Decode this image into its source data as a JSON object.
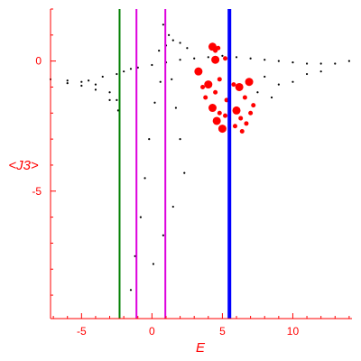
{
  "colors": {
    "axis": "#ff0000",
    "points": "#000000",
    "highlight": "#ff0000",
    "line_green": "#008000",
    "line_magenta": "#dd00dd",
    "line_blue": "#0000ff"
  },
  "chart_data": {
    "type": "scatter",
    "title": "",
    "xlabel": "E",
    "ylabel": "<J3>",
    "xlim": [
      -7.2,
      14.2
    ],
    "ylim": [
      -9.9,
      2.0
    ],
    "grid": false,
    "x_ticks": [
      -5,
      0,
      5,
      10
    ],
    "y_ticks": [
      0,
      -5
    ],
    "vertical_lines": [
      {
        "x": -2.3,
        "color": "green"
      },
      {
        "x": -1.1,
        "color": "magenta"
      },
      {
        "x": 0.95,
        "color": "magenta"
      },
      {
        "x": 5.5,
        "color": "blue"
      }
    ],
    "black_points_approx": [
      [
        -7.2,
        -0.7
      ],
      [
        -6.0,
        -0.75
      ],
      [
        -5.0,
        -0.8
      ],
      [
        -4.0,
        -0.9
      ],
      [
        -3.0,
        -1.2
      ],
      [
        -2.5,
        -1.5
      ],
      [
        -6.0,
        -0.85
      ],
      [
        -5.0,
        -0.95
      ],
      [
        -4.0,
        -1.1
      ],
      [
        -3.0,
        -1.5
      ],
      [
        -2.4,
        -1.9
      ],
      [
        -4.5,
        -0.75
      ],
      [
        -3.5,
        -0.6
      ],
      [
        -2.5,
        -0.5
      ],
      [
        -2.0,
        -0.4
      ],
      [
        -1.5,
        -0.3
      ],
      [
        -1.0,
        -0.25
      ],
      [
        0.0,
        -0.15
      ],
      [
        1.0,
        -0.05
      ],
      [
        2.0,
        0.05
      ],
      [
        3.0,
        0.1
      ],
      [
        4.0,
        0.15
      ],
      [
        5.0,
        0.2
      ],
      [
        6.0,
        0.15
      ],
      [
        7.0,
        0.1
      ],
      [
        8.0,
        0.05
      ],
      [
        9.0,
        0.0
      ],
      [
        10.0,
        -0.05
      ],
      [
        11.0,
        -0.1
      ],
      [
        12.0,
        -0.1
      ],
      [
        13.0,
        -0.1
      ],
      [
        14.0,
        0.0
      ],
      [
        0.5,
        0.4
      ],
      [
        1.0,
        0.6
      ],
      [
        1.5,
        0.8
      ],
      [
        2.0,
        0.7
      ],
      [
        2.5,
        0.5
      ],
      [
        1.2,
        1.0
      ],
      [
        0.8,
        1.4
      ],
      [
        0.6,
        -0.8
      ],
      [
        0.2,
        -1.6
      ],
      [
        -0.2,
        -3.0
      ],
      [
        -0.5,
        -4.5
      ],
      [
        -0.8,
        -6.0
      ],
      [
        -1.2,
        -7.5
      ],
      [
        -1.5,
        -8.8
      ],
      [
        1.4,
        -0.7
      ],
      [
        1.7,
        -1.8
      ],
      [
        2.0,
        -3.0
      ],
      [
        2.3,
        -4.3
      ],
      [
        1.5,
        -5.6
      ],
      [
        0.8,
        -6.7
      ],
      [
        0.1,
        -7.8
      ],
      [
        8.0,
        -0.6
      ],
      [
        9.0,
        -0.9
      ],
      [
        10.0,
        -0.8
      ],
      [
        11.0,
        -0.5
      ],
      [
        12.0,
        -0.4
      ],
      [
        7.5,
        -1.2
      ],
      [
        8.5,
        -1.4
      ]
    ],
    "red_points_approx": [
      [
        4.3,
        0.55
      ],
      [
        4.5,
        0.4
      ],
      [
        4.7,
        0.5
      ],
      [
        4.5,
        0.05
      ],
      [
        5.2,
        0.1
      ],
      [
        4.8,
        -0.7
      ],
      [
        4.0,
        -0.9
      ],
      [
        4.5,
        -1.2
      ],
      [
        5.8,
        -0.9
      ],
      [
        6.2,
        -1.0
      ],
      [
        5.3,
        -1.5
      ],
      [
        6.6,
        -1.4
      ],
      [
        4.3,
        -1.8
      ],
      [
        4.8,
        -2.0
      ],
      [
        5.2,
        -2.1
      ],
      [
        6.0,
        -1.9
      ],
      [
        6.3,
        -2.2
      ],
      [
        7.0,
        -2.0
      ],
      [
        4.6,
        -2.3
      ],
      [
        5.9,
        -2.5
      ],
      [
        6.7,
        -2.4
      ],
      [
        5.0,
        -2.6
      ],
      [
        6.4,
        -2.7
      ],
      [
        7.2,
        -1.7
      ],
      [
        3.3,
        -0.4
      ],
      [
        3.6,
        -1.0
      ],
      [
        3.8,
        -1.4
      ],
      [
        6.9,
        -0.8
      ]
    ]
  }
}
